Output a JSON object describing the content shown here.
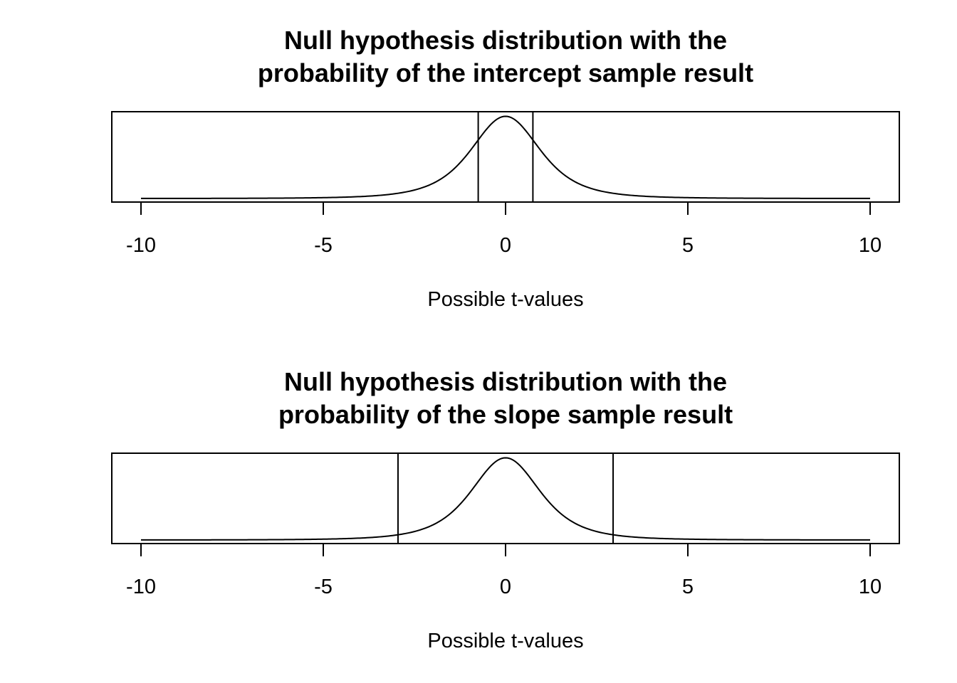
{
  "chart_data": [
    {
      "type": "line",
      "title_lines": [
        "Null hypothesis distribution with the",
        "probability of the intercept sample result"
      ],
      "xlabel": "Possible t-values",
      "ylabel": "",
      "xlim": [
        -10,
        10
      ],
      "xticks": [
        -10,
        -5,
        0,
        5,
        10
      ],
      "xtick_labels": [
        "-10",
        "-5",
        "0",
        "5",
        "10"
      ],
      "y_axis_shown": false,
      "grid": false,
      "series": [
        {
          "curve": "t-distribution density",
          "x": [
            -10,
            -8,
            -6,
            -4,
            -3,
            -2.5,
            -2,
            -1.5,
            -1,
            -0.5,
            0,
            0.5,
            1,
            1.5,
            2,
            2.5,
            3,
            4,
            6,
            8,
            10
          ],
          "y": [
            0.0,
            0.0,
            0.0,
            0.004,
            0.012,
            0.025,
            0.058,
            0.126,
            0.235,
            0.35,
            0.395,
            0.35,
            0.235,
            0.126,
            0.058,
            0.025,
            0.012,
            0.004,
            0.0,
            0.0,
            0.0
          ]
        }
      ],
      "vertical_lines": [
        -0.75,
        0.75
      ],
      "ylim": [
        0,
        0.4
      ]
    },
    {
      "type": "line",
      "title_lines": [
        "Null hypothesis distribution with the",
        "probability of the slope sample result"
      ],
      "xlabel": "Possible t-values",
      "ylabel": "",
      "xlim": [
        -10,
        10
      ],
      "xticks": [
        -10,
        -5,
        0,
        5,
        10
      ],
      "xtick_labels": [
        "-10",
        "-5",
        "0",
        "5",
        "10"
      ],
      "y_axis_shown": false,
      "grid": false,
      "series": [
        {
          "curve": "t-distribution density",
          "x": [
            -10,
            -8,
            -6,
            -4,
            -3,
            -2.5,
            -2,
            -1.5,
            -1,
            -0.5,
            0,
            0.5,
            1,
            1.5,
            2,
            2.5,
            3,
            4,
            6,
            8,
            10
          ],
          "y": [
            0.0,
            0.0,
            0.0,
            0.004,
            0.012,
            0.025,
            0.058,
            0.126,
            0.235,
            0.35,
            0.395,
            0.35,
            0.235,
            0.126,
            0.058,
            0.025,
            0.012,
            0.004,
            0.0,
            0.0,
            0.0
          ]
        }
      ],
      "vertical_lines": [
        -2.95,
        2.95
      ],
      "ylim": [
        0,
        0.4
      ]
    }
  ]
}
